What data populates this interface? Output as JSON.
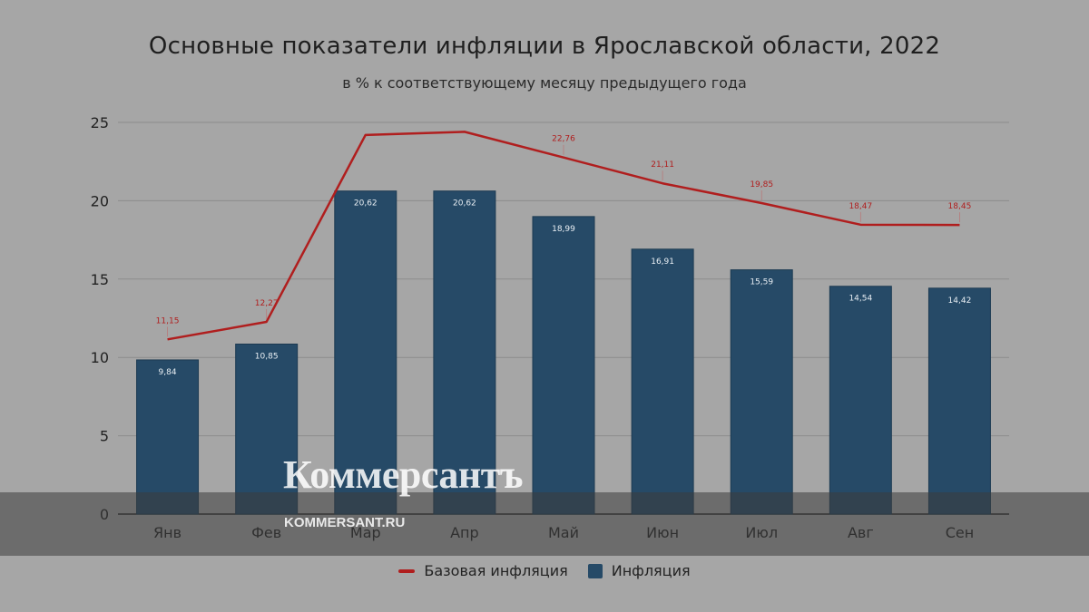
{
  "chart_data": {
    "type": "bar",
    "title": "Основные показатели инфляции в Ярославской области, 2022",
    "subtitle": "в % к соответствующему месяцу предыдущего года",
    "categories": [
      "Янв",
      "Фев",
      "Мар",
      "Апр",
      "Май",
      "Июн",
      "Июл",
      "Авг",
      "Сен"
    ],
    "series": [
      {
        "name": "Инфляция",
        "kind": "bar",
        "color": "#264a67",
        "values": [
          9.84,
          10.85,
          20.62,
          20.62,
          18.99,
          16.91,
          15.59,
          14.54,
          14.42
        ],
        "labels": [
          "9,84",
          "10,85",
          "20,62",
          "20,62",
          "18,99",
          "16,91",
          "15,59",
          "14,54",
          "14,42"
        ]
      },
      {
        "name": "Базовая инфляция",
        "kind": "line",
        "color": "#b01e1e",
        "values": [
          11.15,
          12.27,
          24.2,
          24.4,
          22.76,
          21.11,
          19.85,
          18.47,
          18.45
        ],
        "labels": [
          "11,15",
          "12,27",
          "",
          "",
          "22,76",
          "21,11",
          "19,85",
          "18,47",
          "18,45"
        ]
      }
    ],
    "ylim": [
      0,
      25
    ],
    "yticks": [
      0,
      5,
      10,
      15,
      20,
      25
    ],
    "grid": true,
    "legend_position": "bottom"
  },
  "watermark": {
    "brand": "Коммерсантъ",
    "url": "KOMMERSANT.RU"
  }
}
